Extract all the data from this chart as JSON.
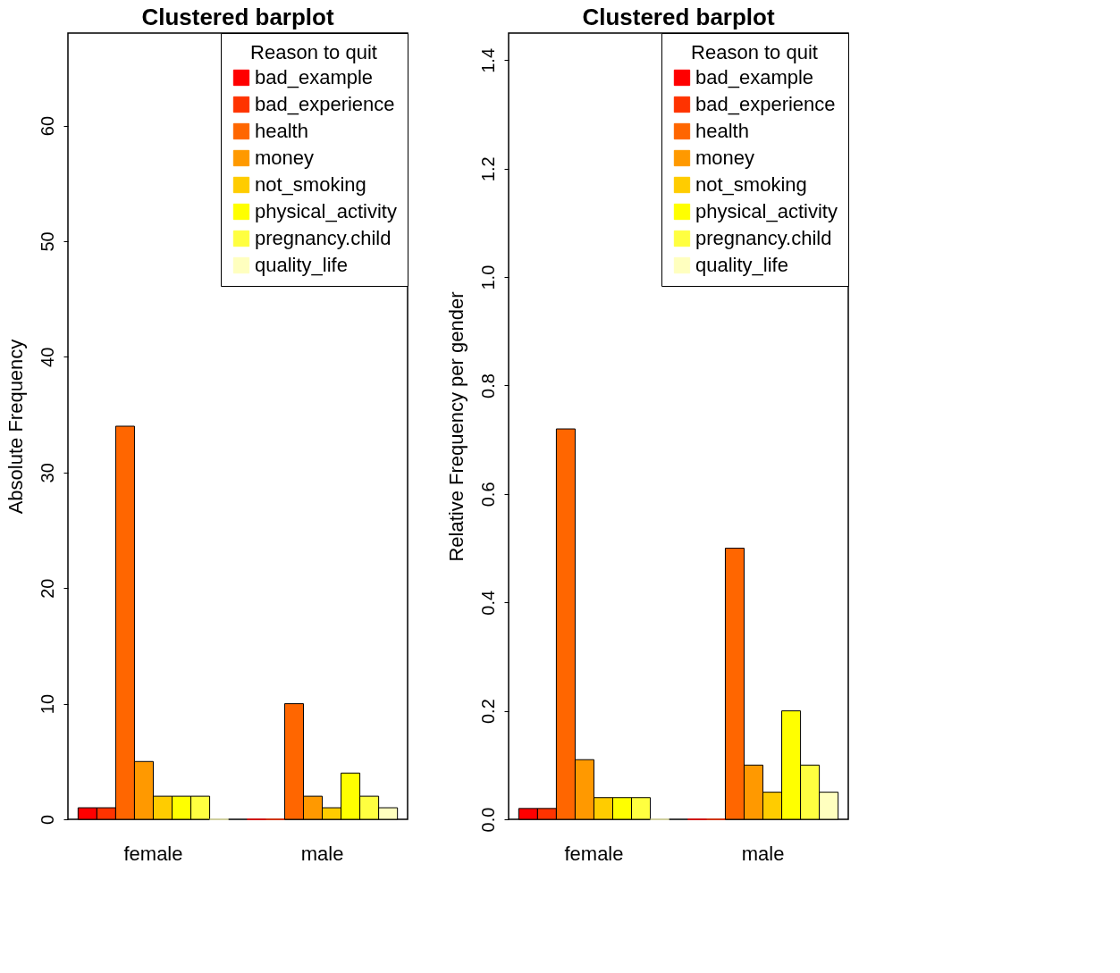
{
  "chart_data": [
    {
      "type": "bar",
      "title": "Clustered barplot",
      "ylabel": "Absolute Frequency",
      "legend_title": "Reason to quit",
      "legend": "top right",
      "grid": false,
      "categories": [
        "female",
        "male"
      ],
      "ylim": [
        0,
        68
      ],
      "yticks": [
        0,
        10,
        20,
        30,
        40,
        50,
        60
      ],
      "series": [
        {
          "name": "bad_example",
          "color": "#ff0000",
          "values": [
            1,
            0
          ]
        },
        {
          "name": "bad_experience",
          "color": "#ff3300",
          "values": [
            1,
            0
          ]
        },
        {
          "name": "health",
          "color": "#ff6600",
          "values": [
            34,
            10
          ]
        },
        {
          "name": "money",
          "color": "#ff9900",
          "values": [
            5,
            2
          ]
        },
        {
          "name": "not_smoking",
          "color": "#ffcc00",
          "values": [
            2,
            1
          ]
        },
        {
          "name": "physical_activity",
          "color": "#ffff00",
          "values": [
            2,
            4
          ]
        },
        {
          "name": "pregnancy.child",
          "color": "#ffff40",
          "values": [
            2,
            2
          ]
        },
        {
          "name": "quality_life",
          "color": "#ffffbf",
          "values": [
            0,
            1
          ]
        }
      ]
    },
    {
      "type": "bar",
      "title": "Clustered barplot",
      "ylabel": "Relative Frequency per gender",
      "legend_title": "Reason to quit",
      "legend": "top right",
      "grid": false,
      "categories": [
        "female",
        "male"
      ],
      "ylim": [
        0,
        1.45
      ],
      "yticks": [
        {
          "value": 0,
          "label": "0.0"
        },
        0.2,
        0.4,
        0.6,
        0.8,
        {
          "value": 1,
          "label": "1.0"
        },
        1.2,
        1.4
      ],
      "series": [
        {
          "name": "bad_example",
          "color": "#ff0000",
          "values": [
            0.02,
            0
          ]
        },
        {
          "name": "bad_experience",
          "color": "#ff3300",
          "values": [
            0.02,
            0
          ]
        },
        {
          "name": "health",
          "color": "#ff6600",
          "values": [
            0.72,
            0.5
          ]
        },
        {
          "name": "money",
          "color": "#ff9900",
          "values": [
            0.11,
            0.1
          ]
        },
        {
          "name": "not_smoking",
          "color": "#ffcc00",
          "values": [
            0.04,
            0.05
          ]
        },
        {
          "name": "physical_activity",
          "color": "#ffff00",
          "values": [
            0.04,
            0.2
          ]
        },
        {
          "name": "pregnancy.child",
          "color": "#ffff40",
          "values": [
            0.04,
            0.1
          ]
        },
        {
          "name": "quality_life",
          "color": "#ffffbf",
          "values": [
            0,
            0.05
          ]
        }
      ]
    }
  ]
}
